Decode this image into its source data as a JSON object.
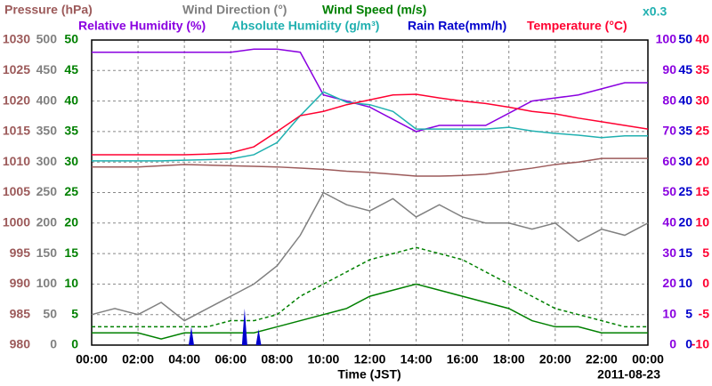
{
  "chart_data": {
    "type": "line",
    "xlabel": "Time (JST)",
    "date": "2011-08-23",
    "scale_note": "x0.3",
    "xlim": [
      0,
      24
    ],
    "xticks": [
      {
        "value": 0,
        "label": "00:00"
      },
      {
        "value": 2,
        "label": "02:00"
      },
      {
        "value": 4,
        "label": "04:00"
      },
      {
        "value": 6,
        "label": "06:00"
      },
      {
        "value": 8,
        "label": "08:00"
      },
      {
        "value": 10,
        "label": "10:00"
      },
      {
        "value": 12,
        "label": "12:00"
      },
      {
        "value": 14,
        "label": "14:00"
      },
      {
        "value": 16,
        "label": "16:00"
      },
      {
        "value": 18,
        "label": "18:00"
      },
      {
        "value": 20,
        "label": "20:00"
      },
      {
        "value": 22,
        "label": "22:00"
      },
      {
        "value": 24,
        "label": "00:00"
      }
    ],
    "grid": true,
    "axes": [
      {
        "side": "left",
        "color": "#9c5a5a",
        "ylim": [
          980,
          1030
        ],
        "yticks": [
          980,
          985,
          990,
          995,
          1000,
          1005,
          1010,
          1015,
          1020,
          1025,
          1030
        ]
      },
      {
        "side": "left",
        "color": "#808080",
        "ylim": [
          0,
          500
        ],
        "yticks": [
          0,
          50,
          100,
          150,
          200,
          250,
          300,
          350,
          400,
          450,
          500
        ]
      },
      {
        "side": "left",
        "color": "#008000",
        "ylim": [
          0,
          50
        ],
        "yticks": [
          0,
          5,
          10,
          15,
          20,
          25,
          30,
          35,
          40,
          45,
          50
        ]
      },
      {
        "side": "right",
        "color": "#8a00e0",
        "ylim": [
          0,
          100
        ],
        "yticks": [
          0,
          10,
          20,
          30,
          40,
          50,
          60,
          70,
          80,
          90,
          100
        ]
      },
      {
        "side": "right",
        "color": "#0000cc",
        "ylim": [
          0,
          50
        ],
        "yticks": [
          0,
          5,
          10,
          15,
          20,
          25,
          30,
          35,
          40,
          45,
          50
        ]
      },
      {
        "side": "right",
        "color": "#ff0030",
        "ylim": [
          -10,
          40
        ],
        "yticks": [
          -10,
          -5,
          0,
          5,
          10,
          15,
          20,
          25,
          30,
          35,
          40
        ]
      }
    ],
    "series": [
      {
        "name": "Pressure (hPa)",
        "axis": 0,
        "color": "#9c5a5a",
        "style": "line",
        "x": [
          0,
          1,
          2,
          3,
          4,
          5,
          6,
          7,
          8,
          9,
          10,
          11,
          12,
          13,
          14,
          15,
          16,
          17,
          18,
          19,
          20,
          21,
          22,
          23,
          24
        ],
        "values": [
          1009.2,
          1009.2,
          1009.2,
          1009.4,
          1009.6,
          1009.5,
          1009.4,
          1009.3,
          1009.2,
          1009,
          1008.8,
          1008.5,
          1008.3,
          1008,
          1007.7,
          1007.7,
          1007.8,
          1008,
          1008.5,
          1009,
          1009.6,
          1010,
          1010.6,
          1010.6,
          1010.6
        ]
      },
      {
        "name": "Wind Direction (°)",
        "axis": 1,
        "color": "#808080",
        "style": "line",
        "x": [
          0,
          1,
          2,
          3,
          4,
          5,
          6,
          7,
          8,
          9,
          10,
          11,
          12,
          13,
          14,
          15,
          16,
          17,
          18,
          19,
          20,
          21,
          22,
          23,
          24
        ],
        "values": [
          50,
          60,
          50,
          70,
          40,
          60,
          80,
          100,
          130,
          180,
          250,
          230,
          220,
          240,
          210,
          230,
          210,
          200,
          200,
          190,
          200,
          170,
          190,
          180,
          200
        ]
      },
      {
        "name": "Wind Speed (m/s)",
        "axis": 2,
        "color": "#008000",
        "style": "line",
        "x": [
          0,
          1,
          2,
          3,
          4,
          5,
          6,
          7,
          8,
          9,
          10,
          11,
          12,
          13,
          14,
          15,
          16,
          17,
          18,
          19,
          20,
          21,
          22,
          23,
          24
        ],
        "values": [
          2,
          2,
          2,
          1,
          2,
          2,
          2,
          2,
          3,
          4,
          5,
          6,
          8,
          9,
          10,
          9,
          8,
          7,
          6,
          4,
          3,
          3,
          2,
          2,
          2
        ]
      },
      {
        "axis": 2,
        "color": "#008000",
        "style": "dash",
        "x": [
          0,
          1,
          2,
          3,
          4,
          5,
          6,
          7,
          8,
          9,
          10,
          11,
          12,
          13,
          14,
          15,
          16,
          17,
          18,
          19,
          20,
          21,
          22,
          23,
          24
        ],
        "values": [
          3,
          3,
          3,
          3,
          3,
          3,
          4,
          4,
          5,
          8,
          10,
          12,
          14,
          15,
          16,
          15,
          14,
          12,
          10,
          8,
          6,
          5,
          4,
          3,
          3
        ]
      },
      {
        "name": "Relative Humidity (%)",
        "axis": 3,
        "color": "#8a00e0",
        "style": "line",
        "x": [
          0,
          1,
          2,
          3,
          4,
          5,
          6,
          7,
          8,
          9,
          10,
          11,
          12,
          13,
          14,
          15,
          16,
          17,
          18,
          19,
          20,
          21,
          22,
          23,
          24
        ],
        "values": [
          96,
          96,
          96,
          96,
          96,
          96,
          96,
          97,
          97,
          96,
          82,
          80,
          78,
          74,
          70,
          72,
          72,
          72,
          76,
          80,
          81,
          82,
          84,
          86,
          86
        ]
      },
      {
        "name": "Absolute Humidity (g/m³)",
        "axis": 4,
        "color": "#20b0b0",
        "style": "line",
        "x": [
          0,
          1,
          2,
          3,
          4,
          5,
          6,
          7,
          8,
          9,
          10,
          11,
          12,
          13,
          14,
          15,
          16,
          17,
          18,
          19,
          20,
          21,
          22,
          23,
          24
        ],
        "values": [
          30.2,
          30.2,
          30.2,
          30.2,
          30.3,
          30.4,
          30.5,
          31.2,
          33.2,
          37.6,
          41.5,
          39.8,
          39.4,
          38.3,
          35.4,
          35.4,
          35.4,
          35.4,
          35.7,
          35.1,
          34.7,
          34.4,
          34,
          34.3,
          34.3
        ]
      },
      {
        "name": "Rain Rate(mm/h)",
        "axis": 4,
        "color": "#0000cc",
        "style": "spike",
        "x": [
          4.3,
          6.6,
          7.2
        ],
        "values": [
          3,
          6,
          2.6
        ]
      },
      {
        "name": "Temperature (°C)",
        "axis": 5,
        "color": "#ff0030",
        "style": "line",
        "x": [
          0,
          1,
          2,
          3,
          4,
          5,
          6,
          7,
          8,
          9,
          10,
          11,
          12,
          13,
          14,
          15,
          16,
          17,
          18,
          19,
          20,
          21,
          22,
          23,
          24
        ],
        "values": [
          21.2,
          21.2,
          21.2,
          21.2,
          21.2,
          21.3,
          21.5,
          22.5,
          25,
          27.6,
          28.3,
          29.4,
          30.2,
          31,
          31.1,
          30.5,
          30,
          29.6,
          29,
          28.3,
          27.9,
          27.2,
          26.6,
          26,
          25.4
        ]
      }
    ]
  }
}
